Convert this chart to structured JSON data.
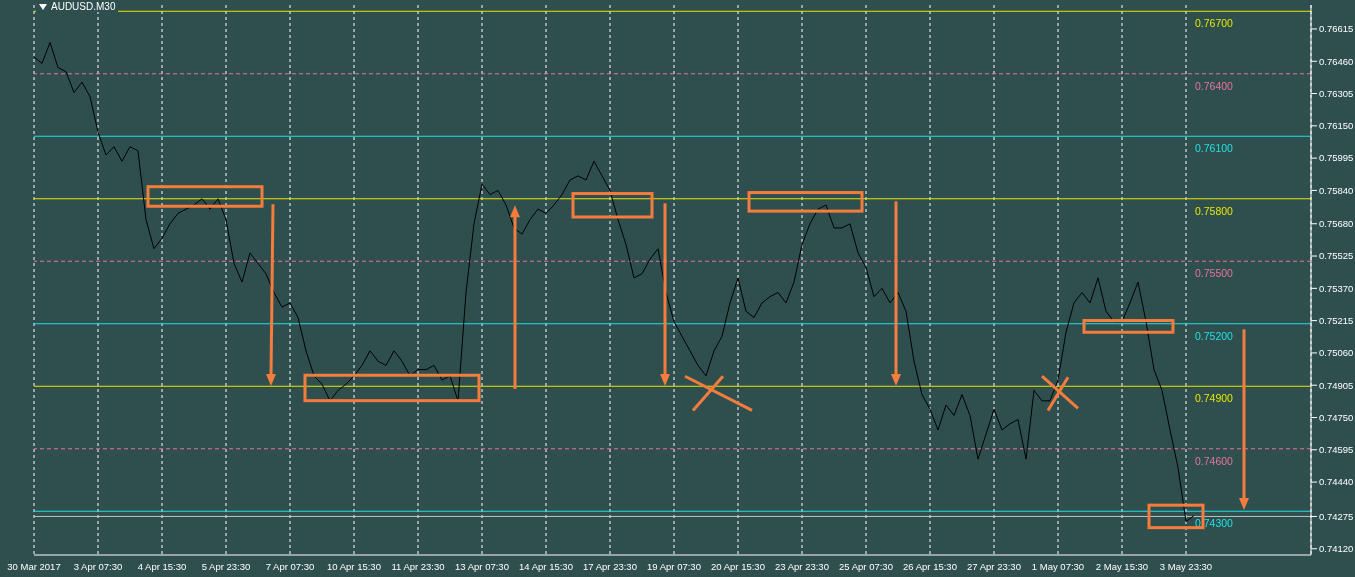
{
  "chart_data": {
    "type": "line",
    "title": "AUDUSD.M30",
    "categories": [
      "30 Mar 2017",
      null,
      null,
      null,
      null,
      null,
      null,
      null,
      "3 Apr 07:30",
      null,
      null,
      null,
      null,
      null,
      null,
      null,
      "4 Apr 15:30",
      null,
      null,
      null,
      null,
      null,
      null,
      null,
      "5 Apr 23:30",
      null,
      null,
      null,
      null,
      null,
      null,
      null,
      "7 Apr 07:30",
      null,
      null,
      null,
      null,
      null,
      null,
      null,
      "10 Apr 15:30",
      null,
      null,
      null,
      null,
      null,
      null,
      null,
      "11 Apr 23:30",
      null,
      null,
      null,
      null,
      null,
      null,
      null,
      "13 Apr 07:30",
      null,
      null,
      null,
      null,
      null,
      null,
      null,
      "14 Apr 15:30",
      null,
      null,
      null,
      null,
      null,
      null,
      null,
      "17 Apr 23:30",
      null,
      null,
      null,
      null,
      null,
      null,
      null,
      "19 Apr 07:30",
      null,
      null,
      null,
      null,
      null,
      null,
      null,
      "20 Apr 15:30",
      null,
      null,
      null,
      null,
      null,
      null,
      null,
      "23 Apr 23:30",
      null,
      null,
      null,
      null,
      null,
      null,
      null,
      "25 Apr 07:30",
      null,
      null,
      null,
      null,
      null,
      null,
      null,
      "26 Apr 15:30",
      null,
      null,
      null,
      null,
      null,
      null,
      null,
      "27 Apr 23:30",
      null,
      null,
      null,
      null,
      null,
      null,
      null,
      "1 May 07:30",
      null,
      null,
      null,
      null,
      null,
      null,
      null,
      "2 May 15:30",
      null,
      null,
      null,
      null,
      null,
      null,
      null,
      "3 May 23:30",
      null
    ],
    "series": [
      {
        "color": "#000000",
        "values": [
          0.7648,
          0.7645,
          0.7655,
          0.7643,
          0.7641,
          0.7631,
          0.7636,
          0.7629,
          0.7612,
          0.7601,
          0.7605,
          0.7598,
          0.7605,
          0.7603,
          0.757,
          0.7556,
          0.7561,
          0.7568,
          0.7573,
          0.7575,
          0.7577,
          0.758,
          0.7575,
          0.758,
          0.757,
          0.7549,
          0.754,
          0.7554,
          0.7549,
          0.7544,
          0.7535,
          0.7528,
          0.753,
          0.7523,
          0.7507,
          0.7495,
          0.7491,
          0.7483,
          0.7488,
          0.7491,
          0.7495,
          0.75,
          0.7507,
          0.7502,
          0.75,
          0.7507,
          0.7502,
          0.7495,
          0.7498,
          0.7498,
          0.75,
          0.7493,
          0.7495,
          0.7483,
          0.7535,
          0.7568,
          0.7587,
          0.7582,
          0.7584,
          0.7577,
          0.7566,
          0.7563,
          0.757,
          0.7575,
          0.7573,
          0.7577,
          0.7582,
          0.7589,
          0.7591,
          0.7589,
          0.7598,
          0.7591,
          0.7584,
          0.757,
          0.7558,
          0.7542,
          0.7544,
          0.7551,
          0.7556,
          0.7535,
          0.7521,
          0.7514,
          0.7507,
          0.75,
          0.7495,
          0.7507,
          0.7514,
          0.753,
          0.7542,
          0.7526,
          0.7523,
          0.753,
          0.7533,
          0.7535,
          0.753,
          0.754,
          0.7558,
          0.7568,
          0.7575,
          0.7577,
          0.7566,
          0.7566,
          0.7568,
          0.7554,
          0.7547,
          0.7533,
          0.7537,
          0.753,
          0.7535,
          0.7526,
          0.7502,
          0.7486,
          0.7479,
          0.7469,
          0.7481,
          0.7476,
          0.7486,
          0.7476,
          0.7455,
          0.7467,
          0.7479,
          0.7469,
          0.7472,
          0.7474,
          0.7455,
          0.7488,
          0.7483,
          0.7483,
          0.7493,
          0.7516,
          0.753,
          0.7535,
          0.753,
          0.7542,
          0.7526,
          0.7521,
          0.7521,
          0.753,
          0.754,
          0.7521,
          0.7498,
          0.7488,
          0.7469,
          0.7451,
          0.7425,
          0.7428
        ]
      }
    ],
    "ylim": [
      0.7409,
      0.7673
    ],
    "yticks": [
      {
        "value": 0.7412,
        "label": "0.74120"
      },
      {
        "value": 0.74275,
        "label": "0.74275"
      },
      {
        "value": 0.7444,
        "label": "0.74440"
      },
      {
        "value": 0.74595,
        "label": "0.74595"
      },
      {
        "value": 0.7475,
        "label": "0.74750"
      },
      {
        "value": 0.74905,
        "label": "0.74905"
      },
      {
        "value": 0.7506,
        "label": "0.75060"
      },
      {
        "value": 0.75215,
        "label": "0.75215"
      },
      {
        "value": 0.7537,
        "label": "0.75370"
      },
      {
        "value": 0.75525,
        "label": "0.75525"
      },
      {
        "value": 0.7568,
        "label": "0.75680"
      },
      {
        "value": 0.7584,
        "label": "0.75840"
      },
      {
        "value": 0.75995,
        "label": "0.75995"
      },
      {
        "value": 0.7615,
        "label": "0.76150"
      },
      {
        "value": 0.76305,
        "label": "0.76305"
      },
      {
        "value": 0.7646,
        "label": "0.76460"
      },
      {
        "value": 0.76615,
        "label": "0.76615"
      }
    ],
    "grid": "x",
    "marker": "none",
    "line_style": "solid",
    "ref_lines": [
      {
        "axis": "y",
        "value": 0.767,
        "label": "0.76700",
        "color": "#e6e600",
        "line_style": "solid"
      },
      {
        "axis": "y",
        "value": 0.764,
        "label": "0.76400",
        "color": "#e8729a",
        "line_style": "dashed"
      },
      {
        "axis": "y",
        "value": 0.761,
        "label": "0.76100",
        "color": "#22e0e0",
        "line_style": "solid"
      },
      {
        "axis": "y",
        "value": 0.758,
        "label": "0.75800",
        "color": "#e6e600",
        "line_style": "solid"
      },
      {
        "axis": "y",
        "value": 0.755,
        "label": "0.75500",
        "color": "#e8729a",
        "line_style": "dashed"
      },
      {
        "axis": "y",
        "value": 0.752,
        "label": "0.75200",
        "color": "#22e0e0",
        "line_style": "solid"
      },
      {
        "axis": "y",
        "value": 0.749,
        "label": "0.74900",
        "color": "#e6e600",
        "line_style": "solid"
      },
      {
        "axis": "y",
        "value": 0.746,
        "label": "0.74600",
        "color": "#e8729a",
        "line_style": "dashed"
      },
      {
        "axis": "y",
        "value": 0.743,
        "label": "0.74300",
        "color": "#22e0e0",
        "line_style": "solid"
      },
      {
        "axis": "y",
        "value": 0.74275,
        "color": "#c0c0c0",
        "line_style": "solid"
      }
    ]
  }
}
